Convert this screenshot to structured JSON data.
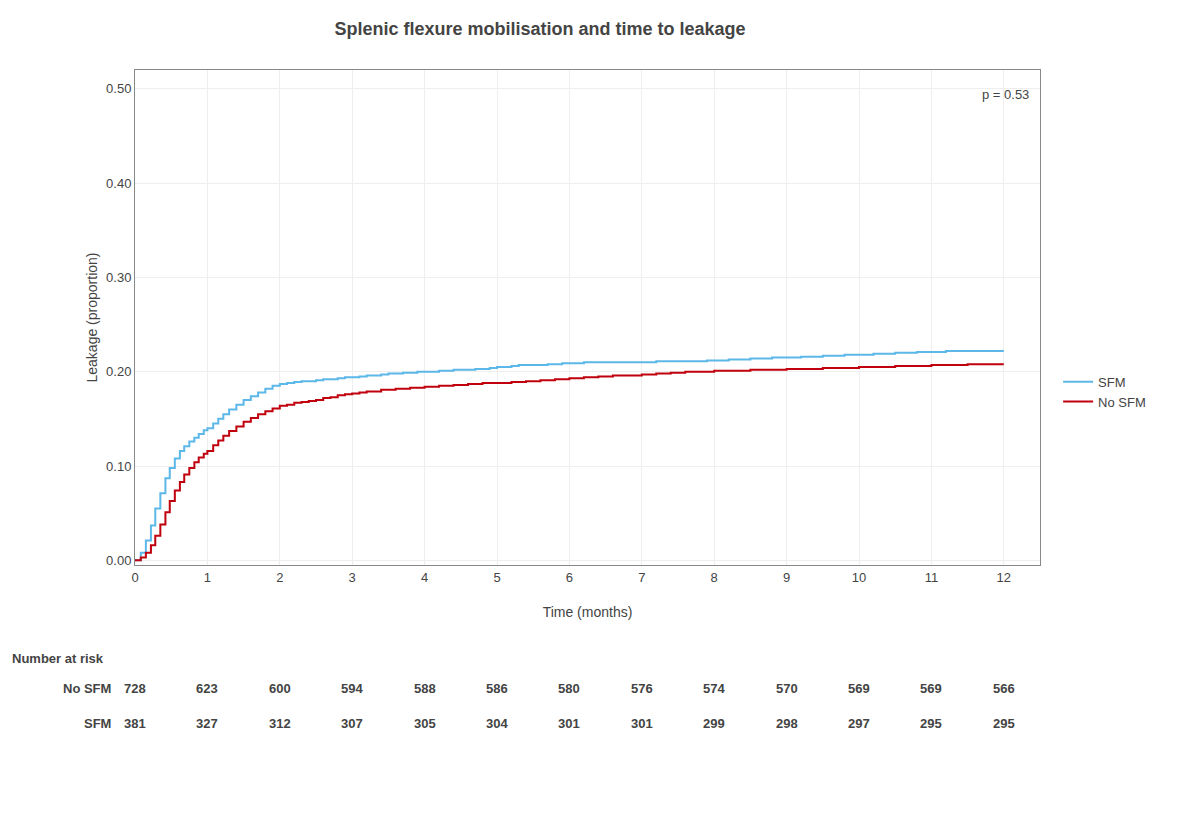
{
  "chart_data": {
    "type": "step",
    "title": "Splenic flexure mobilisation and time to leakage",
    "x_label": "Time (months)",
    "y_label": "Leakage (proportion)",
    "annotations": [
      "p = 0.53"
    ],
    "xlim": [
      0,
      12.5
    ],
    "ylim": [
      -0.005,
      0.52
    ],
    "xticks": [
      0,
      1,
      2,
      3,
      4,
      5,
      6,
      7,
      8,
      9,
      10,
      11,
      12
    ],
    "yticks": [
      {
        "value": 0.0,
        "label": "0.00"
      },
      {
        "value": 0.1,
        "label": "0.10"
      },
      {
        "value": 0.2,
        "label": "0.20"
      },
      {
        "value": 0.3,
        "label": "0.30"
      },
      {
        "value": 0.4,
        "label": "0.40"
      },
      {
        "value": 0.5,
        "label": "0.50"
      }
    ],
    "grid": true,
    "legend": "right",
    "series": [
      {
        "name": "SFM",
        "color": "#5BB8E8",
        "x": [
          0,
          0.08,
          0.15,
          0.22,
          0.28,
          0.35,
          0.42,
          0.48,
          0.55,
          0.62,
          0.68,
          0.75,
          0.82,
          0.88,
          0.95,
          1.0,
          1.08,
          1.15,
          1.22,
          1.3,
          1.4,
          1.5,
          1.6,
          1.7,
          1.8,
          1.9,
          2.0,
          2.1,
          2.2,
          2.3,
          2.4,
          2.5,
          2.6,
          2.7,
          2.8,
          2.9,
          3.0,
          3.1,
          3.2,
          3.3,
          3.4,
          3.5,
          3.6,
          3.7,
          3.8,
          3.9,
          4.0,
          4.1,
          4.2,
          4.3,
          4.4,
          4.5,
          4.6,
          4.7,
          4.8,
          4.9,
          5.0,
          5.1,
          5.2,
          5.3,
          5.5,
          5.7,
          5.9,
          6.0,
          6.2,
          6.4,
          6.6,
          6.8,
          7.0,
          7.2,
          7.4,
          7.5,
          7.7,
          7.9,
          8.0,
          8.2,
          8.5,
          8.8,
          9.0,
          9.2,
          9.5,
          9.8,
          10.0,
          10.2,
          10.5,
          10.8,
          11.0,
          11.2,
          11.5,
          11.8,
          12.0
        ],
        "values": [
          0.0,
          0.008,
          0.021,
          0.037,
          0.055,
          0.071,
          0.087,
          0.098,
          0.108,
          0.116,
          0.121,
          0.126,
          0.13,
          0.134,
          0.138,
          0.14,
          0.145,
          0.15,
          0.155,
          0.16,
          0.165,
          0.17,
          0.174,
          0.178,
          0.182,
          0.185,
          0.187,
          0.188,
          0.189,
          0.19,
          0.19,
          0.191,
          0.192,
          0.192,
          0.193,
          0.194,
          0.194,
          0.195,
          0.196,
          0.196,
          0.197,
          0.198,
          0.198,
          0.199,
          0.199,
          0.2,
          0.2,
          0.2,
          0.201,
          0.201,
          0.202,
          0.202,
          0.202,
          0.203,
          0.203,
          0.204,
          0.205,
          0.205,
          0.206,
          0.207,
          0.207,
          0.208,
          0.209,
          0.209,
          0.21,
          0.21,
          0.21,
          0.21,
          0.21,
          0.211,
          0.211,
          0.211,
          0.211,
          0.212,
          0.212,
          0.213,
          0.214,
          0.215,
          0.215,
          0.216,
          0.217,
          0.218,
          0.218,
          0.219,
          0.22,
          0.221,
          0.221,
          0.222,
          0.222,
          0.222,
          0.222
        ]
      },
      {
        "name": "No SFM",
        "color": "#C0000C",
        "x": [
          0,
          0.08,
          0.15,
          0.22,
          0.28,
          0.35,
          0.42,
          0.48,
          0.55,
          0.62,
          0.68,
          0.75,
          0.82,
          0.88,
          0.95,
          1.0,
          1.08,
          1.15,
          1.22,
          1.3,
          1.4,
          1.5,
          1.6,
          1.7,
          1.8,
          1.9,
          2.0,
          2.1,
          2.2,
          2.3,
          2.4,
          2.5,
          2.6,
          2.7,
          2.8,
          2.9,
          3.0,
          3.1,
          3.2,
          3.4,
          3.6,
          3.8,
          4.0,
          4.2,
          4.4,
          4.6,
          4.8,
          5.0,
          5.2,
          5.4,
          5.6,
          5.8,
          6.0,
          6.2,
          6.4,
          6.6,
          6.8,
          7.0,
          7.2,
          7.4,
          7.6,
          7.8,
          8.0,
          8.5,
          9.0,
          9.5,
          10.0,
          10.5,
          11.0,
          11.5,
          12.0
        ],
        "values": [
          0.0,
          0.003,
          0.008,
          0.016,
          0.026,
          0.038,
          0.051,
          0.063,
          0.074,
          0.083,
          0.091,
          0.098,
          0.104,
          0.109,
          0.113,
          0.116,
          0.122,
          0.127,
          0.132,
          0.137,
          0.142,
          0.147,
          0.151,
          0.155,
          0.158,
          0.161,
          0.164,
          0.165,
          0.167,
          0.168,
          0.169,
          0.17,
          0.172,
          0.173,
          0.175,
          0.176,
          0.177,
          0.178,
          0.179,
          0.181,
          0.182,
          0.183,
          0.184,
          0.185,
          0.186,
          0.187,
          0.188,
          0.188,
          0.189,
          0.19,
          0.191,
          0.192,
          0.193,
          0.194,
          0.195,
          0.196,
          0.196,
          0.197,
          0.198,
          0.199,
          0.2,
          0.2,
          0.201,
          0.202,
          0.203,
          0.204,
          0.205,
          0.206,
          0.207,
          0.208,
          0.208
        ]
      }
    ],
    "risk_table": {
      "label": "Number at risk",
      "x": [
        0,
        1,
        2,
        3,
        4,
        5,
        6,
        7,
        8,
        9,
        10,
        11,
        12
      ],
      "rows": [
        {
          "name": "No SFM",
          "values": [
            728,
            623,
            600,
            594,
            588,
            586,
            580,
            576,
            574,
            570,
            569,
            569,
            566
          ]
        },
        {
          "name": "SFM",
          "values": [
            381,
            327,
            312,
            307,
            305,
            304,
            301,
            301,
            299,
            298,
            297,
            295,
            295
          ]
        }
      ]
    }
  }
}
